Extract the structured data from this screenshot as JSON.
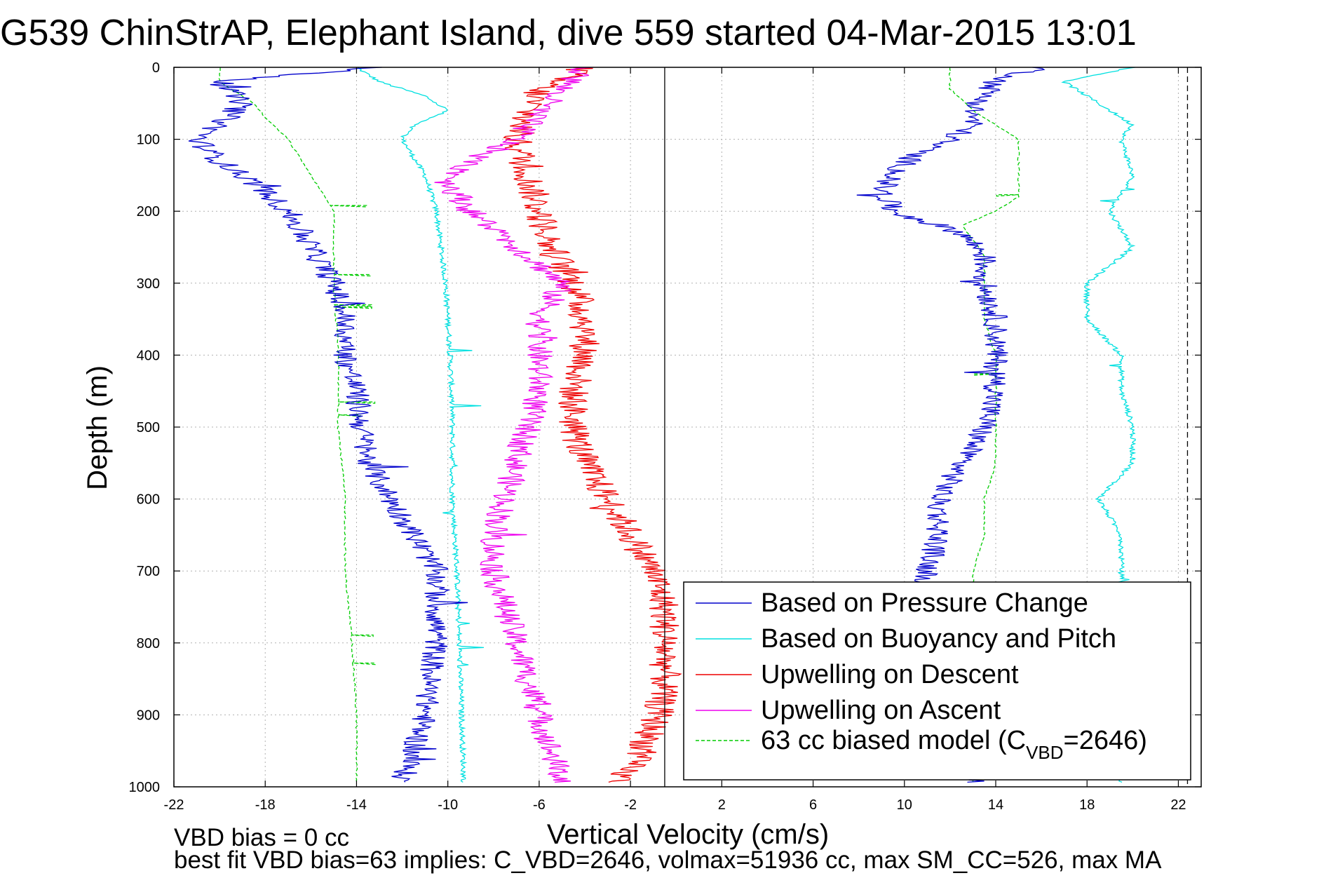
{
  "chart_data": {
    "type": "line",
    "title": "G539 ChinStrAP, Elephant Island, dive 559 started 04-Mar-2015 13:01",
    "xlabel": "Vertical Velocity (cm/s)",
    "ylabel": "Depth (m)",
    "xlim": [
      -22,
      23
    ],
    "ylim": [
      0,
      1000
    ],
    "y_reversed": true,
    "xticks": [
      "-22",
      "-18",
      "-14",
      "-10",
      "-6",
      "-2",
      "2",
      "6",
      "10",
      "14",
      "18",
      "22"
    ],
    "yticks": [
      "0",
      "100",
      "200",
      "300",
      "400",
      "500",
      "600",
      "700",
      "800",
      "900",
      "1000"
    ],
    "grid": true,
    "legend_position": "bottom-right",
    "vertical_lines": [
      {
        "x": -0.5,
        "style": "solid",
        "color": "#000000"
      },
      {
        "x": 22.4,
        "style": "dashed",
        "color": "#000000"
      }
    ],
    "series": [
      {
        "name": "Based on Pressure Change",
        "color": "#0000cc",
        "style": "solid",
        "descent": {
          "depth": [
            0,
            20,
            50,
            80,
            100,
            130,
            160,
            200,
            250,
            300,
            350,
            400,
            450,
            500,
            550,
            600,
            650,
            700,
            750,
            800,
            850,
            900,
            950,
            990
          ],
          "velocity": [
            -13,
            -20,
            -19,
            -20,
            -21,
            -20,
            -18.5,
            -17,
            -16,
            -15,
            -14.5,
            -14.5,
            -14,
            -13.8,
            -13.5,
            -12.5,
            -11.5,
            -10.5,
            -10.5,
            -10.5,
            -10.8,
            -11,
            -11.5,
            -12
          ]
        },
        "ascent": {
          "depth": [
            990,
            950,
            900,
            850,
            800,
            750,
            700,
            650,
            600,
            550,
            500,
            450,
            400,
            350,
            300,
            260,
            230,
            200,
            170,
            150,
            120,
            100,
            80,
            60,
            40,
            20,
            0
          ],
          "velocity": [
            13,
            11,
            11,
            11,
            11,
            11,
            11,
            11.5,
            11.5,
            12.5,
            13.5,
            14,
            14,
            14,
            13.5,
            13.5,
            12.5,
            9.5,
            9,
            9.5,
            10.5,
            12,
            13,
            13,
            13.5,
            14,
            16
          ]
        }
      },
      {
        "name": "Based on Buoyancy and Pitch",
        "color": "#00e0e0",
        "style": "solid",
        "descent": {
          "depth": [
            0,
            20,
            40,
            60,
            80,
            100,
            150,
            200,
            250,
            300,
            400,
            500,
            600,
            700,
            800,
            900,
            990
          ],
          "velocity": [
            -14,
            -13,
            -11,
            -10,
            -11.5,
            -12,
            -11,
            -10.5,
            -10.3,
            -10.1,
            -9.9,
            -9.8,
            -9.8,
            -9.6,
            -9.5,
            -9.4,
            -9.3
          ]
        },
        "ascent": {
          "depth": [
            990,
            900,
            800,
            700,
            650,
            600,
            550,
            500,
            450,
            400,
            350,
            300,
            250,
            200,
            150,
            100,
            80,
            40,
            20,
            0
          ],
          "velocity": [
            19.5,
            19.5,
            19.5,
            19.5,
            19.5,
            18.5,
            20,
            20,
            19.5,
            19.5,
            18,
            18,
            20,
            19,
            20,
            19.5,
            20,
            18,
            17,
            20
          ]
        }
      },
      {
        "name": "Upwelling on Descent",
        "color": "#ee0000",
        "style": "solid",
        "depth": [
          0,
          30,
          60,
          100,
          150,
          200,
          250,
          300,
          350,
          400,
          450,
          500,
          550,
          600,
          650,
          700,
          750,
          800,
          850,
          900,
          950,
          990
        ],
        "velocity": [
          -4,
          -6,
          -6.5,
          -7,
          -6.5,
          -6,
          -5.5,
          -4.5,
          -4,
          -4,
          -4.5,
          -4.5,
          -4,
          -3,
          -2,
          -1,
          -0.5,
          -0.5,
          -0.5,
          -0.8,
          -1.5,
          -2.5
        ]
      },
      {
        "name": "Upwelling on Ascent",
        "color": "#ee00ee",
        "style": "solid",
        "depth": [
          0,
          30,
          60,
          100,
          130,
          160,
          200,
          250,
          300,
          350,
          400,
          450,
          500,
          550,
          600,
          650,
          700,
          750,
          800,
          850,
          900,
          950,
          990
        ],
        "velocity": [
          -4,
          -5,
          -6,
          -7,
          -9,
          -10,
          -9,
          -7,
          -5,
          -6,
          -6,
          -6,
          -6.5,
          -7,
          -7.5,
          -8,
          -8,
          -7.5,
          -7,
          -6.5,
          -6,
          -5.5,
          -5
        ]
      },
      {
        "name": "63 cc biased model (C",
        "name_sub": "VBD",
        "name_suffix": "=2646)",
        "color": "#00cc00",
        "style": "dashed",
        "descent": {
          "depth": [
            0,
            20,
            50,
            70,
            100,
            150,
            200,
            250,
            300,
            400,
            500,
            600,
            700,
            800,
            900,
            990
          ],
          "velocity": [
            -20,
            -20,
            -18.5,
            -18,
            -17,
            -16,
            -15,
            -15,
            -15,
            -14.8,
            -14.8,
            -14.5,
            -14.5,
            -14.2,
            -14,
            -14
          ]
        },
        "ascent": {
          "depth": [
            990,
            900,
            800,
            700,
            650,
            600,
            550,
            500,
            450,
            400,
            350,
            300,
            260,
            220,
            200,
            180,
            140,
            100,
            60,
            30,
            0
          ],
          "velocity": [
            13,
            13,
            13,
            13,
            13.5,
            13.5,
            14,
            14,
            14,
            14,
            13.5,
            13.5,
            13.5,
            12.5,
            14,
            15,
            15,
            15,
            13,
            12,
            12
          ]
        }
      }
    ]
  },
  "footer": {
    "line1": "VBD bias = 0 cc",
    "line2": "best fit VBD bias=63 implies: C_VBD=2646, volmax=51936 cc, max SM_CC=526, max MA"
  }
}
